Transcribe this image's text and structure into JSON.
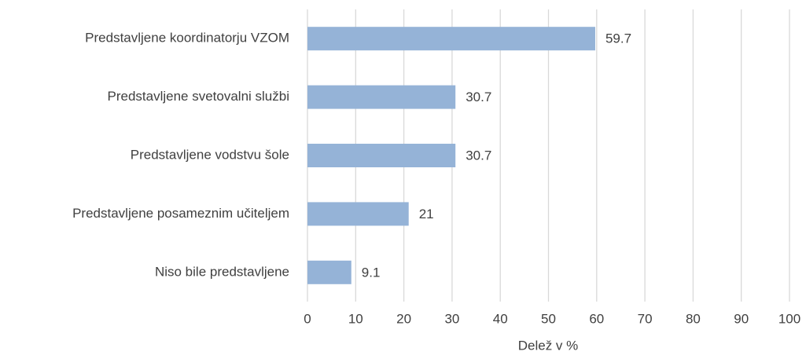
{
  "chart_data": {
    "type": "barh",
    "categories": [
      "Predstavljene koordinatorju VZOM",
      "Predstavljene svetovalni službi",
      "Predstavljene vodstvu šole",
      "Predstavljene posameznim učiteljem",
      "Niso bile predstavljene"
    ],
    "values": [
      59.7,
      30.7,
      30.7,
      21,
      9.1
    ],
    "color": "#95b3d7",
    "xlabel": "Delež v %",
    "xlim": [
      0,
      100
    ],
    "xticks": [
      0,
      10,
      20,
      30,
      40,
      50,
      60,
      70,
      80,
      90,
      100
    ],
    "grid": true
  }
}
